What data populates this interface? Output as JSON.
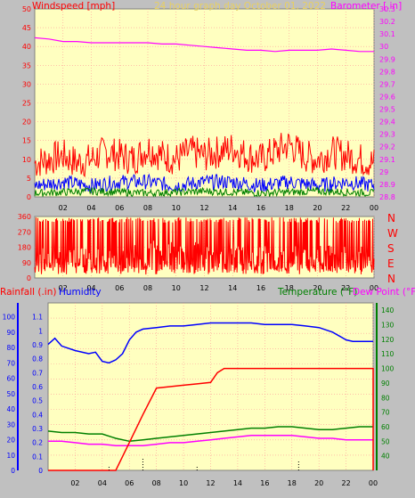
{
  "header": {
    "left_title": "Windspeed [mph]",
    "center_title": "24 hour graph day   October 01, 2022",
    "right_title": "Barometer [.in]"
  },
  "colors": {
    "background": "#c0c0c0",
    "plot_bg": "#ffffc0",
    "grid": "#ff9999",
    "wind": "#ff0000",
    "gust": "#0000ff",
    "wind_green": "#008000",
    "barometer": "#ff00ff",
    "rain": "#ff0000",
    "humidity": "#0000ff",
    "temperature": "#008000",
    "dew_point": "#ff00ff",
    "title_yellow": "#e8d060",
    "axis_pink": "#ff00ff",
    "axis_red": "#ff0000",
    "axis_blue": "#0000ff",
    "axis_green": "#008000"
  },
  "direction_labels": [
    "N",
    "W",
    "S",
    "E",
    "N"
  ],
  "bottom_labels": {
    "rainfall": "Rainfall (.in)",
    "humidity": "Humidity",
    "temperature": "Temperature (°F)",
    "dew_point": "Dew Point (°F)"
  },
  "chart_data": [
    {
      "type": "line",
      "title": "24 hour graph day   October 01, 2022",
      "x_ticks": [
        "02",
        "04",
        "06",
        "08",
        "10",
        "12",
        "14",
        "16",
        "18",
        "20",
        "22",
        "00"
      ],
      "y_left_label": "Windspeed [mph]",
      "y_left_ticks": [
        "0",
        "5",
        "10",
        "15",
        "20",
        "25",
        "30",
        "35",
        "40",
        "45",
        "50"
      ],
      "ylim_left": [
        0,
        50
      ],
      "y_right_label": "Barometer [.in]",
      "y_right_ticks": [
        "28.8",
        "28.9",
        "29",
        "29.1",
        "29.2",
        "29.3",
        "29.4",
        "29.5",
        "29.6",
        "29.7",
        "29.8",
        "29.9",
        "30",
        "30.1",
        "30.2",
        "30.3"
      ],
      "ylim_right": [
        28.8,
        30.3
      ],
      "grid": true,
      "series": [
        {
          "key": "wind_gust",
          "hours": [
            0,
            1,
            2,
            3,
            4,
            5,
            6,
            7,
            8,
            9,
            10,
            11,
            12,
            13,
            14,
            15,
            16,
            17,
            18,
            19,
            20,
            21,
            22,
            23,
            24
          ],
          "values": [
            9,
            10,
            11,
            9,
            10,
            12,
            11,
            10,
            13,
            11,
            10,
            12,
            11,
            12,
            13,
            11,
            10,
            12,
            14,
            11,
            10,
            12,
            11,
            10,
            9
          ]
        },
        {
          "key": "wind_speed",
          "hours": [
            0,
            2,
            4,
            6,
            8,
            10,
            12,
            14,
            16,
            18,
            20,
            22,
            24
          ],
          "values": [
            3,
            4,
            3,
            4,
            4,
            3,
            4,
            4,
            3,
            4,
            3,
            4,
            3
          ]
        },
        {
          "key": "wind_low",
          "hours": [
            0,
            4,
            8,
            12,
            16,
            20,
            24
          ],
          "values": [
            1,
            1.5,
            1,
            1.5,
            1,
            1.5,
            1
          ]
        },
        {
          "key": "barometer",
          "hours": [
            0,
            1,
            2,
            3,
            4,
            5,
            6,
            7,
            8,
            9,
            10,
            11,
            12,
            13,
            14,
            15,
            16,
            17,
            18,
            19,
            20,
            21,
            22,
            23,
            24
          ],
          "values": [
            30.07,
            30.06,
            30.04,
            30.04,
            30.03,
            30.03,
            30.03,
            30.03,
            30.03,
            30.02,
            30.02,
            30.01,
            30.0,
            29.99,
            29.98,
            29.97,
            29.97,
            29.96,
            29.97,
            29.97,
            29.97,
            29.98,
            29.97,
            29.96,
            29.96
          ]
        }
      ]
    },
    {
      "type": "line",
      "x_ticks": [
        "02",
        "04",
        "06",
        "08",
        "10",
        "12",
        "14",
        "16",
        "18",
        "20",
        "22",
        "00"
      ],
      "y_left_ticks": [
        "0",
        "90",
        "180",
        "270",
        "360"
      ],
      "ylim": [
        0,
        360
      ],
      "y_right_ticks": [
        "N",
        "W",
        "S",
        "E",
        "N"
      ],
      "grid": true,
      "series": [
        {
          "key": "wind_direction",
          "hours": [
            0,
            0.5,
            1,
            1.5,
            2,
            2.5,
            3,
            3.5,
            4,
            4.5,
            5,
            5.5,
            6,
            6.5,
            7,
            7.5,
            8,
            8.5,
            9,
            9.5,
            10,
            10.5,
            11,
            11.5,
            12,
            12.5,
            13,
            13.5,
            14,
            14.5,
            15,
            15.5,
            16,
            16.5,
            17,
            17.5,
            18,
            18.5,
            19,
            19.5,
            20,
            20.5,
            21,
            21.5,
            22,
            22.5,
            23,
            23.5,
            24
          ],
          "values": [
            70,
            120,
            90,
            160,
            60,
            140,
            100,
            120,
            80,
            150,
            60,
            130,
            90,
            110,
            150,
            80,
            120,
            200,
            90,
            170,
            110,
            150,
            80,
            180,
            100,
            160,
            120,
            90,
            200,
            110,
            150,
            90,
            130,
            170,
            100,
            140,
            80,
            160,
            120,
            90,
            150,
            110,
            180,
            90,
            130,
            100,
            160,
            120,
            90
          ]
        }
      ]
    },
    {
      "type": "line",
      "x_ticks": [
        "02",
        "04",
        "06",
        "08",
        "10",
        "12",
        "14",
        "16",
        "18",
        "20",
        "22",
        "00"
      ],
      "y_left_rain_ticks": [
        "0",
        "0.1",
        "0.2",
        "0.3",
        "0.4",
        "0.5",
        "0.6",
        "0.7",
        "0.8",
        "0.9",
        "1",
        "1.1"
      ],
      "ylim_rain": [
        0,
        1.2
      ],
      "y_left_humidity_ticks": [
        "0",
        "10",
        "20",
        "30",
        "40",
        "50",
        "60",
        "70",
        "80",
        "90",
        "100"
      ],
      "ylim_humidity": [
        0,
        100
      ],
      "y_right_ticks": [
        "40",
        "50",
        "60",
        "70",
        "80",
        "90",
        "100",
        "110",
        "120",
        "130",
        "140"
      ],
      "ylim_right": [
        30,
        145
      ],
      "grid": true,
      "series": [
        {
          "key": "rainfall",
          "name": "Rainfall (.in)",
          "hours": [
            0,
            4,
            5,
            6,
            7,
            8,
            9,
            10,
            11,
            12,
            12.5,
            13,
            14,
            16,
            18,
            20,
            22,
            24,
            24
          ],
          "values": [
            0,
            0,
            0,
            0.2,
            0.4,
            0.59,
            0.6,
            0.61,
            0.62,
            0.63,
            0.7,
            0.73,
            0.73,
            0.73,
            0.73,
            0.73,
            0.73,
            0.73,
            0
          ]
        },
        {
          "key": "humidity",
          "name": "Humidity",
          "hours": [
            0,
            0.5,
            1,
            2,
            3,
            3.5,
            4,
            4.5,
            5,
            5.5,
            6,
            6.5,
            7,
            8,
            9,
            10,
            11,
            12,
            13,
            14,
            15,
            16,
            17,
            18,
            19,
            20,
            21,
            22,
            22.5,
            23,
            24
          ],
          "values": [
            82,
            86,
            81,
            78,
            76,
            77,
            71,
            70,
            72,
            76,
            85,
            90,
            92,
            93,
            94,
            94,
            95,
            96,
            96,
            96,
            96,
            95,
            95,
            95,
            94,
            93,
            90,
            85,
            84,
            84,
            84
          ]
        },
        {
          "key": "temperature",
          "name": "Temperature (°F)",
          "hours": [
            0,
            1,
            2,
            3,
            4,
            5,
            6,
            7,
            8,
            9,
            10,
            11,
            12,
            13,
            14,
            15,
            16,
            17,
            18,
            19,
            20,
            21,
            22,
            23,
            24
          ],
          "values": [
            57,
            56,
            56,
            55,
            55,
            52,
            50,
            51,
            52,
            53,
            54,
            55,
            56,
            57,
            58,
            59,
            59,
            60,
            60,
            59,
            58,
            58,
            59,
            60,
            60
          ]
        },
        {
          "key": "dew_point",
          "name": "Dew Point (°F)",
          "hours": [
            0,
            1,
            2,
            3,
            4,
            5,
            6,
            7,
            8,
            9,
            10,
            11,
            12,
            13,
            14,
            15,
            16,
            17,
            18,
            19,
            20,
            21,
            22,
            23,
            24
          ],
          "values": [
            50,
            50,
            49,
            48,
            48,
            47,
            47,
            47,
            48,
            49,
            49,
            50,
            51,
            52,
            53,
            54,
            54,
            54,
            54,
            53,
            52,
            52,
            51,
            51,
            51
          ]
        }
      ]
    }
  ]
}
